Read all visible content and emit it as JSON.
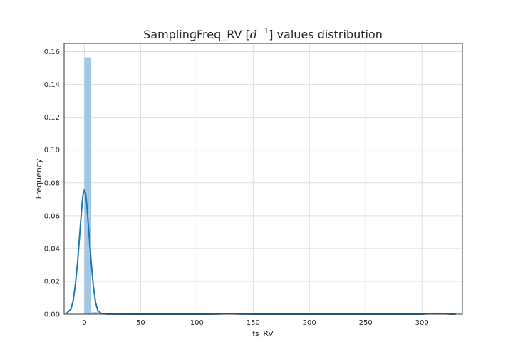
{
  "chart_data": {
    "type": "histogram",
    "title": {
      "prefix": "SamplingFreq_RV [",
      "base": "d",
      "exponent": "−1",
      "suffix": "] values distribution"
    },
    "xlabel": "fs_RV",
    "ylabel": "Frequency",
    "xlim": [
      -18,
      336
    ],
    "ylim": [
      0,
      0.165
    ],
    "xticks": [
      {
        "value": 0,
        "label": "0"
      },
      {
        "value": 50,
        "label": "50"
      },
      {
        "value": 100,
        "label": "100"
      },
      {
        "value": 150,
        "label": "150"
      },
      {
        "value": 200,
        "label": "200"
      },
      {
        "value": 250,
        "label": "250"
      },
      {
        "value": 300,
        "label": "300"
      }
    ],
    "yticks": [
      {
        "value": 0,
        "label": "0.00"
      },
      {
        "value": 0.02,
        "label": "0.02"
      },
      {
        "value": 0.04,
        "label": "0.04"
      },
      {
        "value": 0.06,
        "label": "0.06"
      },
      {
        "value": 0.08,
        "label": "0.08"
      },
      {
        "value": 0.1,
        "label": "0.10"
      },
      {
        "value": 0.12,
        "label": "0.12"
      },
      {
        "value": 0.14,
        "label": "0.14"
      },
      {
        "value": 0.16,
        "label": "0.16"
      }
    ],
    "grid": true,
    "bars": [
      {
        "x0": 0.0,
        "x1": 6.4,
        "value": 0.1565
      },
      {
        "x0": 6.4,
        "x1": 12.8,
        "value": 0.0012
      },
      {
        "x0": 128.0,
        "x1": 134.4,
        "value": 0.00015
      },
      {
        "x0": 313.6,
        "x1": 320.0,
        "value": 0.00015
      }
    ],
    "kde": {
      "x": [
        -16,
        -12,
        -10,
        -8,
        -6,
        -4,
        -2,
        -1,
        0,
        1,
        2,
        4,
        6,
        8,
        10,
        12,
        15,
        20,
        40,
        80,
        110,
        120,
        128,
        136,
        150,
        200,
        250,
        300,
        305,
        312,
        318,
        325,
        330
      ],
      "y": [
        0.0005,
        0.003,
        0.008,
        0.018,
        0.032,
        0.05,
        0.068,
        0.0735,
        0.0755,
        0.0735,
        0.068,
        0.05,
        0.032,
        0.017,
        0.007,
        0.002,
        0.0004,
        5e-05,
        0,
        0,
        1e-05,
        0.0001,
        0.0003,
        0.0001,
        1e-05,
        0,
        0,
        2e-05,
        0.0002,
        0.0005,
        0.0003,
        5e-05,
        0
      ]
    },
    "colors": {
      "bar": "#9ec8e3",
      "kde": "#1f77b4",
      "grid": "#dddddd",
      "spine": "#333333"
    }
  }
}
